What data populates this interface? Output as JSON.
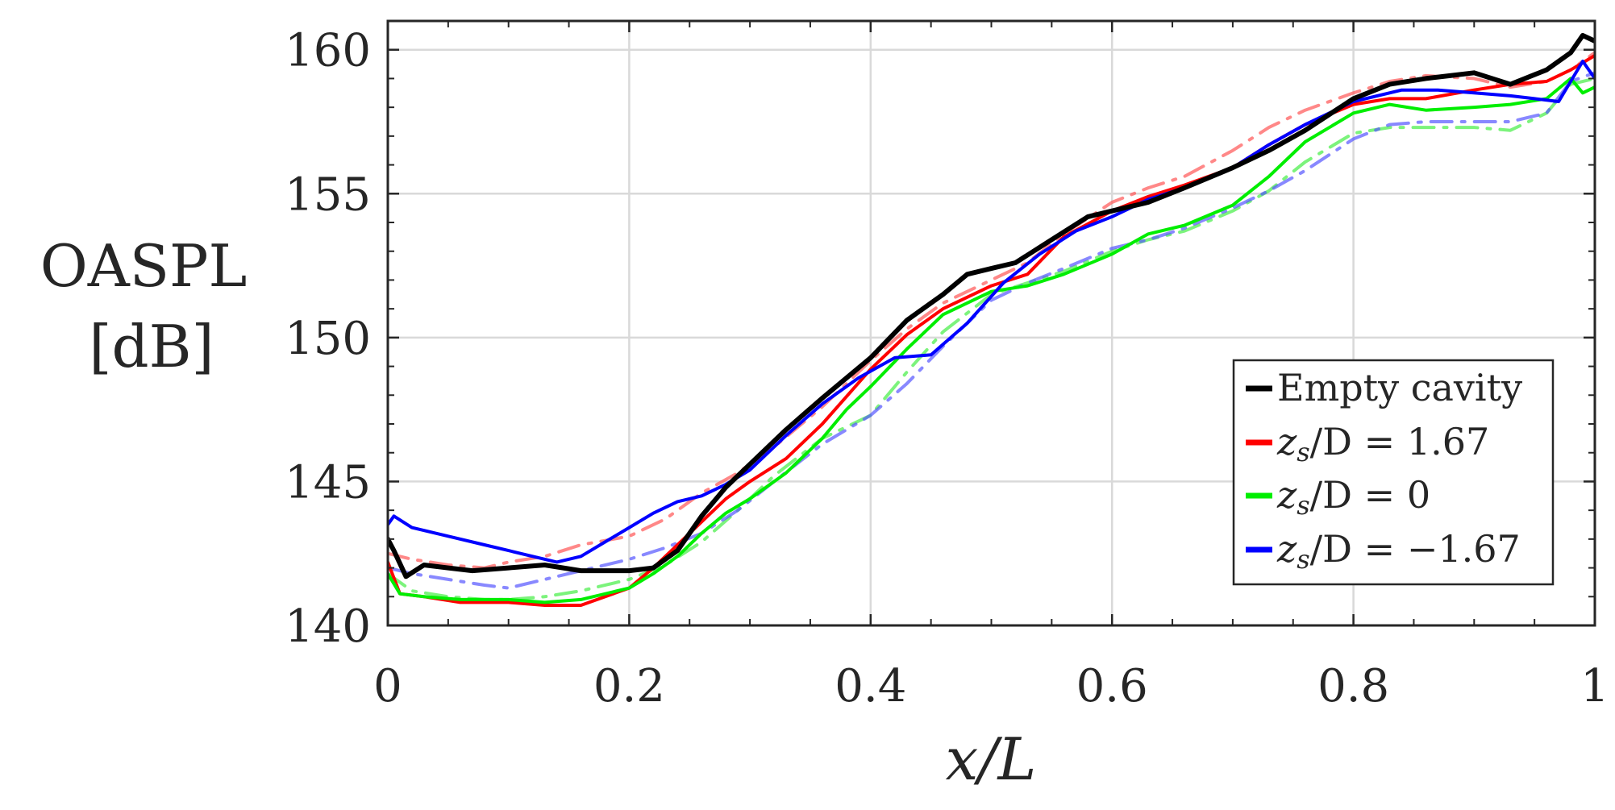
{
  "chart_data": {
    "type": "line",
    "title": "",
    "xlabel": "x/L",
    "ylabel_line1": "OASPL",
    "ylabel_line2": "[dB]",
    "xlim": [
      0,
      1
    ],
    "ylim": [
      140,
      161
    ],
    "x_ticks": [
      0,
      0.2,
      0.4,
      0.6,
      0.8,
      1
    ],
    "x_tick_labels": [
      "0",
      "0.2",
      "0.4",
      "0.6",
      "0.8",
      "1"
    ],
    "y_ticks": [
      140,
      145,
      150,
      155,
      160
    ],
    "y_tick_labels": [
      "140",
      "145",
      "150",
      "155",
      "160"
    ],
    "grid": true,
    "legend_position": "bottom-right",
    "legend": [
      {
        "label": "Empty cavity",
        "color": "#000000"
      },
      {
        "label_var": "z",
        "label_sub": "s",
        "label_rest": "/D = 1.67",
        "color": "#ff0000"
      },
      {
        "label_var": "z",
        "label_sub": "s",
        "label_rest": "/D = 0",
        "color": "#00ee00"
      },
      {
        "label_var": "z",
        "label_sub": "s",
        "label_rest": "/D = −1.67",
        "color": "#0000ff"
      }
    ],
    "series": [
      {
        "name": "Empty cavity",
        "color": "#000000",
        "dash": "solid",
        "width": 6,
        "opacity": 1,
        "x": [
          0,
          0.005,
          0.015,
          0.03,
          0.05,
          0.07,
          0.1,
          0.13,
          0.16,
          0.2,
          0.22,
          0.24,
          0.26,
          0.28,
          0.3,
          0.33,
          0.36,
          0.4,
          0.43,
          0.46,
          0.48,
          0.5,
          0.52,
          0.55,
          0.58,
          0.6,
          0.63,
          0.66,
          0.7,
          0.73,
          0.76,
          0.8,
          0.83,
          0.86,
          0.88,
          0.9,
          0.93,
          0.96,
          0.98,
          0.99,
          1.0
        ],
        "y": [
          143.0,
          142.6,
          141.7,
          142.1,
          142.0,
          141.9,
          142.0,
          142.1,
          141.9,
          141.9,
          142.0,
          142.6,
          143.8,
          144.8,
          145.6,
          146.8,
          147.9,
          149.3,
          150.6,
          151.5,
          152.2,
          152.4,
          152.6,
          153.4,
          154.2,
          154.4,
          154.7,
          155.2,
          155.9,
          156.5,
          157.2,
          158.3,
          158.8,
          159.0,
          159.1,
          159.2,
          158.8,
          159.3,
          159.9,
          160.5,
          160.3
        ]
      },
      {
        "name": "z_s/D = 1.67 (solid)",
        "color": "#ff0000",
        "dash": "solid",
        "width": 4,
        "opacity": 1,
        "x": [
          0,
          0.01,
          0.03,
          0.06,
          0.1,
          0.13,
          0.16,
          0.2,
          0.22,
          0.24,
          0.26,
          0.28,
          0.3,
          0.33,
          0.36,
          0.4,
          0.43,
          0.46,
          0.5,
          0.53,
          0.56,
          0.6,
          0.63,
          0.66,
          0.7,
          0.73,
          0.76,
          0.8,
          0.83,
          0.86,
          0.9,
          0.93,
          0.96,
          0.98,
          1.0
        ],
        "y": [
          142.2,
          141.1,
          141.0,
          140.8,
          140.8,
          140.7,
          140.7,
          141.3,
          142.0,
          142.8,
          143.6,
          144.4,
          145.0,
          145.8,
          147.0,
          148.9,
          150.1,
          151.0,
          151.8,
          152.2,
          153.5,
          154.4,
          154.9,
          155.3,
          155.9,
          156.7,
          157.4,
          158.1,
          158.3,
          158.3,
          158.6,
          158.8,
          158.9,
          159.3,
          159.8
        ]
      },
      {
        "name": "z_s/D = 1.67 (dashed)",
        "color": "#ff5555",
        "dash": "dashdot",
        "width": 4,
        "opacity": 0.7,
        "x": [
          0,
          0.02,
          0.05,
          0.08,
          0.1,
          0.13,
          0.16,
          0.2,
          0.23,
          0.26,
          0.29,
          0.32,
          0.36,
          0.4,
          0.43,
          0.46,
          0.5,
          0.53,
          0.56,
          0.6,
          0.63,
          0.66,
          0.7,
          0.73,
          0.76,
          0.8,
          0.83,
          0.86,
          0.9,
          0.93,
          0.96,
          0.98,
          1.0
        ],
        "y": [
          142.5,
          142.3,
          142.1,
          142.0,
          142.2,
          142.4,
          142.8,
          143.1,
          143.7,
          144.6,
          145.3,
          146.2,
          147.6,
          149.2,
          150.3,
          151.2,
          152.0,
          152.6,
          153.6,
          154.7,
          155.2,
          155.6,
          156.5,
          157.3,
          157.9,
          158.5,
          158.9,
          159.1,
          159.0,
          158.7,
          158.9,
          159.3,
          159.9
        ]
      },
      {
        "name": "z_s/D = 0 (solid)",
        "color": "#00ee00",
        "dash": "solid",
        "width": 4,
        "opacity": 1,
        "x": [
          0,
          0.01,
          0.03,
          0.06,
          0.1,
          0.13,
          0.16,
          0.2,
          0.22,
          0.24,
          0.26,
          0.28,
          0.3,
          0.33,
          0.36,
          0.38,
          0.4,
          0.43,
          0.46,
          0.5,
          0.53,
          0.56,
          0.6,
          0.63,
          0.66,
          0.7,
          0.73,
          0.76,
          0.8,
          0.83,
          0.86,
          0.9,
          0.93,
          0.96,
          0.98,
          0.99,
          1.0
        ],
        "y": [
          141.8,
          141.1,
          141.0,
          140.9,
          140.9,
          140.8,
          140.9,
          141.3,
          141.8,
          142.4,
          143.2,
          143.9,
          144.4,
          145.3,
          146.5,
          147.5,
          148.3,
          149.6,
          150.8,
          151.6,
          151.8,
          152.2,
          152.9,
          153.6,
          153.9,
          154.6,
          155.6,
          156.8,
          157.8,
          158.1,
          157.9,
          158.0,
          158.1,
          158.3,
          159.0,
          158.5,
          158.7
        ]
      },
      {
        "name": "z_s/D = 0 (dashed)",
        "color": "#44ee44",
        "dash": "dashdot",
        "width": 4,
        "opacity": 0.7,
        "x": [
          0,
          0.02,
          0.05,
          0.08,
          0.1,
          0.13,
          0.16,
          0.2,
          0.23,
          0.26,
          0.29,
          0.32,
          0.36,
          0.4,
          0.43,
          0.46,
          0.5,
          0.53,
          0.56,
          0.6,
          0.63,
          0.66,
          0.7,
          0.73,
          0.76,
          0.8,
          0.83,
          0.86,
          0.9,
          0.93,
          0.96,
          0.98,
          1.0
        ],
        "y": [
          141.8,
          141.2,
          141.0,
          140.9,
          140.9,
          141.0,
          141.2,
          141.6,
          142.1,
          142.9,
          144.0,
          145.2,
          146.5,
          147.3,
          148.8,
          150.2,
          151.5,
          151.9,
          152.3,
          153.0,
          153.4,
          153.7,
          154.4,
          155.1,
          156.1,
          157.1,
          157.3,
          157.3,
          157.3,
          157.2,
          157.8,
          158.8,
          159.0
        ]
      },
      {
        "name": "z_s/D = −1.67 (solid)",
        "color": "#0000ff",
        "dash": "solid",
        "width": 4,
        "opacity": 1,
        "x": [
          0,
          0.005,
          0.02,
          0.05,
          0.08,
          0.1,
          0.12,
          0.14,
          0.16,
          0.18,
          0.2,
          0.22,
          0.24,
          0.26,
          0.28,
          0.3,
          0.33,
          0.36,
          0.39,
          0.42,
          0.45,
          0.48,
          0.51,
          0.54,
          0.57,
          0.6,
          0.63,
          0.66,
          0.7,
          0.73,
          0.76,
          0.8,
          0.84,
          0.87,
          0.9,
          0.93,
          0.95,
          0.97,
          0.99,
          1.0
        ],
        "y": [
          143.5,
          143.8,
          143.4,
          143.1,
          142.8,
          142.6,
          142.4,
          142.2,
          142.4,
          142.9,
          143.4,
          143.9,
          144.3,
          144.5,
          144.9,
          145.4,
          146.6,
          147.7,
          148.6,
          149.3,
          149.4,
          150.5,
          151.9,
          152.9,
          153.7,
          154.2,
          154.8,
          155.2,
          155.9,
          156.7,
          157.4,
          158.2,
          158.6,
          158.6,
          158.5,
          158.4,
          158.3,
          158.2,
          159.6,
          159.0
        ]
      },
      {
        "name": "z_s/D = −1.67 (dashed)",
        "color": "#5555ff",
        "dash": "dashdot",
        "width": 4,
        "opacity": 0.7,
        "x": [
          0,
          0.02,
          0.05,
          0.08,
          0.1,
          0.13,
          0.16,
          0.2,
          0.23,
          0.26,
          0.29,
          0.32,
          0.36,
          0.4,
          0.43,
          0.46,
          0.5,
          0.53,
          0.56,
          0.6,
          0.63,
          0.66,
          0.7,
          0.73,
          0.76,
          0.8,
          0.83,
          0.86,
          0.9,
          0.93,
          0.96,
          0.98,
          1.0
        ],
        "y": [
          142.0,
          141.8,
          141.6,
          141.4,
          141.3,
          141.6,
          141.9,
          142.3,
          142.7,
          143.2,
          144.0,
          145.0,
          146.3,
          147.3,
          148.4,
          149.7,
          151.3,
          151.9,
          152.4,
          153.1,
          153.4,
          153.8,
          154.5,
          155.1,
          155.8,
          156.9,
          157.4,
          157.5,
          157.5,
          157.5,
          157.8,
          158.9,
          159.2
        ]
      }
    ]
  }
}
